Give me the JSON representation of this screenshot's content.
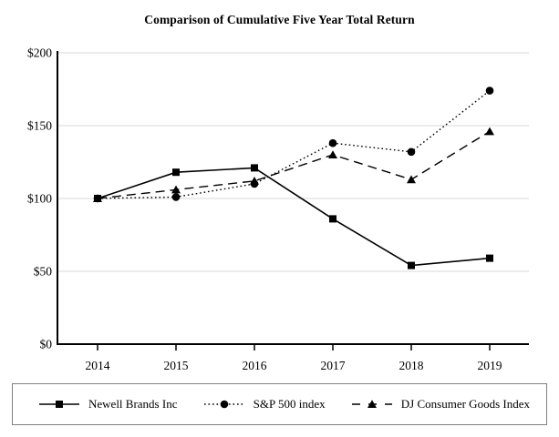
{
  "title": "Comparison of Cumulative Five Year Total Return",
  "chart_data": {
    "type": "line",
    "categories": [
      "2014",
      "2015",
      "2016",
      "2017",
      "2018",
      "2019"
    ],
    "series": [
      {
        "name": "Newell Brands Inc",
        "marker": "square",
        "line": "solid",
        "values": [
          100,
          118,
          121,
          86,
          54,
          59
        ]
      },
      {
        "name": "S&P 500 index",
        "marker": "circle",
        "line": "dotted",
        "values": [
          100,
          101,
          110,
          138,
          132,
          174
        ]
      },
      {
        "name": "DJ Consumer Goods Index",
        "marker": "triangle",
        "line": "dashed",
        "values": [
          100,
          106,
          112,
          130,
          113,
          146
        ]
      }
    ],
    "xlabel": "",
    "ylabel": "",
    "ylim": [
      0,
      200
    ],
    "y_ticks": [
      {
        "value": 0,
        "label": "$0"
      },
      {
        "value": 50,
        "label": "$50"
      },
      {
        "value": 100,
        "label": "$100"
      },
      {
        "value": 150,
        "label": "$150"
      },
      {
        "value": 200,
        "label": "$200"
      }
    ],
    "grid": "horizontal",
    "legend_position": "bottom",
    "colors": {
      "series": "#000000",
      "grid": "#d9d9d9",
      "axis": "#000000",
      "legend_border": "#808080",
      "background": "#ffffff"
    }
  }
}
